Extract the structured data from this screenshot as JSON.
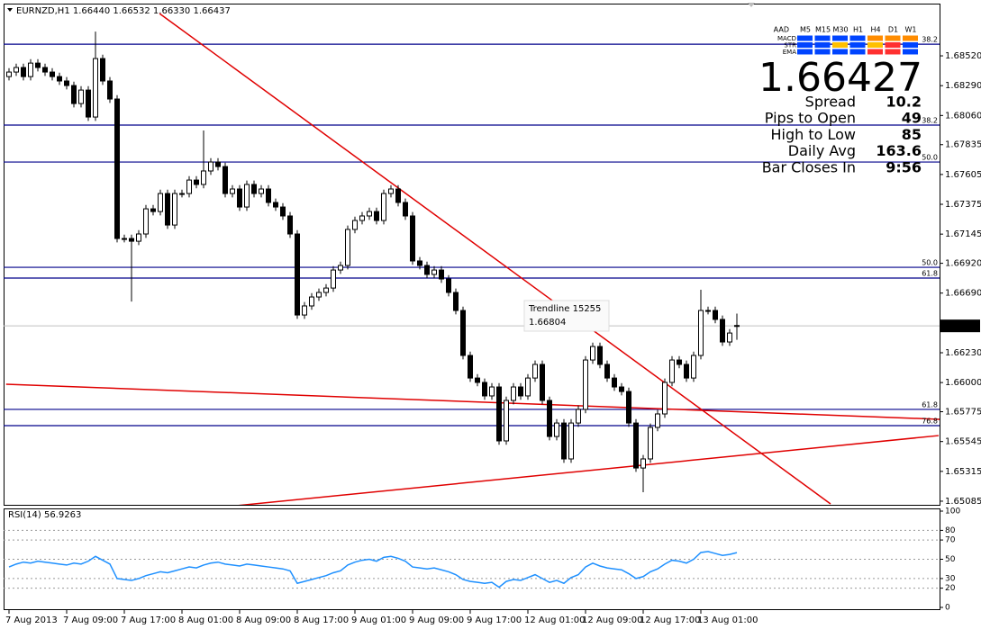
{
  "chart_data": {
    "type": "candlestick",
    "title": "EURNZD,H1  1.66440 1.66532 1.66330 1.66437",
    "ylim": [
      1.65057,
      1.68916
    ],
    "yticks": [
      {
        "value": 1.6852,
        "label": "1.68520"
      },
      {
        "value": 1.6829,
        "label": "1.68290"
      },
      {
        "value": 1.6806,
        "label": "1.68060"
      },
      {
        "value": 1.67835,
        "label": "1.67835"
      },
      {
        "value": 1.67605,
        "label": "1.67605"
      },
      {
        "value": 1.67375,
        "label": "1.67375"
      },
      {
        "value": 1.67145,
        "label": "1.67145"
      },
      {
        "value": 1.6692,
        "label": "1.66920"
      },
      {
        "value": 1.6669,
        "label": "1.66690"
      },
      {
        "value": 1.6623,
        "label": "1.66230"
      },
      {
        "value": 1.66,
        "label": "1.66000"
      },
      {
        "value": 1.65775,
        "label": "1.65775"
      },
      {
        "value": 1.65545,
        "label": "1.65545"
      },
      {
        "value": 1.65315,
        "label": "1.65315"
      },
      {
        "value": 1.65085,
        "label": "1.65085"
      }
    ],
    "xticks": [
      {
        "value": 0,
        "label": "7 Aug 2013"
      },
      {
        "value": 8,
        "label": "7 Aug 09:00"
      },
      {
        "value": 16,
        "label": "7 Aug 17:00"
      },
      {
        "value": 24,
        "label": "8 Aug 01:00"
      },
      {
        "value": 32,
        "label": "8 Aug 09:00"
      },
      {
        "value": 40,
        "label": "8 Aug 17:00"
      },
      {
        "value": 48,
        "label": "9 Aug 01:00"
      },
      {
        "value": 56,
        "label": "9 Aug 09:00"
      },
      {
        "value": 64,
        "label": "9 Aug 17:00"
      },
      {
        "value": 72,
        "label": "12 Aug 01:00"
      },
      {
        "value": 80,
        "label": "12 Aug 09:00"
      },
      {
        "value": 88,
        "label": "12 Aug 17:00"
      },
      {
        "value": 96,
        "label": "13 Aug 01:00"
      }
    ],
    "candles": [
      [
        1.6836,
        1.68425,
        1.6833,
        1.68395
      ],
      [
        1.68395,
        1.6846,
        1.68365,
        1.6843
      ],
      [
        1.6843,
        1.6846,
        1.6833,
        1.6836
      ],
      [
        1.6836,
        1.68494,
        1.6833,
        1.68464
      ],
      [
        1.68464,
        1.68494,
        1.684,
        1.6843
      ],
      [
        1.6843,
        1.6846,
        1.68365,
        1.68395
      ],
      [
        1.68395,
        1.68425,
        1.6833,
        1.6836
      ],
      [
        1.6836,
        1.6839,
        1.68296,
        1.68326
      ],
      [
        1.68326,
        1.68356,
        1.68261,
        1.68291
      ],
      [
        1.68291,
        1.68321,
        1.68122,
        1.68152
      ],
      [
        1.68152,
        1.68286,
        1.68122,
        1.68256
      ],
      [
        1.68256,
        1.68286,
        1.68018,
        1.68048
      ],
      [
        1.68048,
        1.68707,
        1.68018,
        1.68499
      ],
      [
        1.68499,
        1.68529,
        1.68296,
        1.68326
      ],
      [
        1.68326,
        1.68356,
        1.68157,
        1.68187
      ],
      [
        1.68187,
        1.68217,
        1.67081,
        1.67111
      ],
      [
        1.67111,
        1.67141,
        1.67081,
        1.67111
      ],
      [
        1.67111,
        1.67141,
        1.66625,
        1.6709
      ],
      [
        1.6709,
        1.67176,
        1.6706,
        1.67146
      ],
      [
        1.67146,
        1.6737,
        1.67116,
        1.6734
      ],
      [
        1.6734,
        1.6737,
        1.67289,
        1.67319
      ],
      [
        1.67319,
        1.67488,
        1.67289,
        1.67458
      ],
      [
        1.67458,
        1.67488,
        1.67185,
        1.67215
      ],
      [
        1.67215,
        1.67488,
        1.67185,
        1.67458
      ],
      [
        1.67458,
        1.67488,
        1.67428,
        1.67458
      ],
      [
        1.67458,
        1.67592,
        1.67428,
        1.67562
      ],
      [
        1.67562,
        1.67592,
        1.67498,
        1.67528
      ],
      [
        1.67528,
        1.67944,
        1.67498,
        1.67632
      ],
      [
        1.67632,
        1.67731,
        1.67602,
        1.67701
      ],
      [
        1.67701,
        1.67731,
        1.67636,
        1.67666
      ],
      [
        1.67666,
        1.67696,
        1.67428,
        1.67458
      ],
      [
        1.67458,
        1.67523,
        1.67428,
        1.67493
      ],
      [
        1.67493,
        1.67523,
        1.67324,
        1.67354
      ],
      [
        1.67354,
        1.67558,
        1.67324,
        1.67528
      ],
      [
        1.67528,
        1.67558,
        1.67428,
        1.67458
      ],
      [
        1.67458,
        1.67523,
        1.67428,
        1.67493
      ],
      [
        1.67493,
        1.67523,
        1.67359,
        1.67389
      ],
      [
        1.67389,
        1.67419,
        1.67324,
        1.67354
      ],
      [
        1.67354,
        1.67384,
        1.67255,
        1.67285
      ],
      [
        1.67285,
        1.67315,
        1.67116,
        1.67146
      ],
      [
        1.67146,
        1.67176,
        1.66491,
        1.66521
      ],
      [
        1.66521,
        1.66621,
        1.66491,
        1.66591
      ],
      [
        1.66591,
        1.6669,
        1.66561,
        1.6666
      ],
      [
        1.6666,
        1.66725,
        1.6663,
        1.66695
      ],
      [
        1.66695,
        1.66759,
        1.66665,
        1.66729
      ],
      [
        1.66729,
        1.66898,
        1.66699,
        1.66868
      ],
      [
        1.66868,
        1.66933,
        1.66838,
        1.66903
      ],
      [
        1.66903,
        1.67211,
        1.66873,
        1.67181
      ],
      [
        1.67181,
        1.6728,
        1.67151,
        1.6725
      ],
      [
        1.6725,
        1.67315,
        1.6722,
        1.67285
      ],
      [
        1.67285,
        1.67349,
        1.67255,
        1.67319
      ],
      [
        1.67319,
        1.67349,
        1.6722,
        1.6725
      ],
      [
        1.6725,
        1.67488,
        1.6722,
        1.67458
      ],
      [
        1.67458,
        1.67523,
        1.67428,
        1.67493
      ],
      [
        1.67493,
        1.67523,
        1.67359,
        1.67389
      ],
      [
        1.67389,
        1.67419,
        1.67255,
        1.67285
      ],
      [
        1.67285,
        1.67315,
        1.66908,
        1.66938
      ],
      [
        1.66938,
        1.66968,
        1.66873,
        1.66903
      ],
      [
        1.66903,
        1.66933,
        1.66804,
        1.66834
      ],
      [
        1.66834,
        1.66898,
        1.66804,
        1.66868
      ],
      [
        1.66868,
        1.66898,
        1.66769,
        1.66799
      ],
      [
        1.66799,
        1.66829,
        1.66665,
        1.66695
      ],
      [
        1.66695,
        1.66725,
        1.66526,
        1.66556
      ],
      [
        1.66556,
        1.66586,
        1.66179,
        1.66209
      ],
      [
        1.66209,
        1.66239,
        1.66005,
        1.66035
      ],
      [
        1.66035,
        1.66065,
        1.65971,
        1.66001
      ],
      [
        1.66001,
        1.66031,
        1.65867,
        1.65897
      ],
      [
        1.65897,
        1.65996,
        1.65867,
        1.65966
      ],
      [
        1.65966,
        1.65996,
        1.6552,
        1.6555
      ],
      [
        1.6555,
        1.65892,
        1.6552,
        1.65862
      ],
      [
        1.65862,
        1.65996,
        1.65832,
        1.65966
      ],
      [
        1.65966,
        1.65996,
        1.65867,
        1.65897
      ],
      [
        1.65897,
        1.66065,
        1.65867,
        1.66035
      ],
      [
        1.66035,
        1.6617,
        1.66005,
        1.6614
      ],
      [
        1.6614,
        1.6617,
        1.65832,
        1.65862
      ],
      [
        1.65862,
        1.65892,
        1.65554,
        1.65584
      ],
      [
        1.65584,
        1.65718,
        1.65554,
        1.65688
      ],
      [
        1.65688,
        1.65718,
        1.65381,
        1.65411
      ],
      [
        1.65411,
        1.65718,
        1.65381,
        1.65688
      ],
      [
        1.65688,
        1.65823,
        1.65658,
        1.65793
      ],
      [
        1.65793,
        1.66204,
        1.65763,
        1.66174
      ],
      [
        1.66174,
        1.66308,
        1.66144,
        1.66278
      ],
      [
        1.66278,
        1.66308,
        1.6611,
        1.6614
      ],
      [
        1.6614,
        1.6617,
        1.66005,
        1.66035
      ],
      [
        1.66035,
        1.66065,
        1.65936,
        1.65966
      ],
      [
        1.65966,
        1.65996,
        1.65901,
        1.65931
      ],
      [
        1.65931,
        1.65961,
        1.65658,
        1.65688
      ],
      [
        1.65688,
        1.65718,
        1.65311,
        1.65341
      ],
      [
        1.65341,
        1.65441,
        1.65154,
        1.65411
      ],
      [
        1.65411,
        1.65684,
        1.65381,
        1.65654
      ],
      [
        1.65654,
        1.65788,
        1.65624,
        1.65758
      ],
      [
        1.65758,
        1.66031,
        1.65728,
        1.66001
      ],
      [
        1.66001,
        1.66204,
        1.65971,
        1.66174
      ],
      [
        1.66174,
        1.66204,
        1.6611,
        1.6614
      ],
      [
        1.6614,
        1.6617,
        1.66005,
        1.66035
      ],
      [
        1.66035,
        1.66239,
        1.66005,
        1.66209
      ],
      [
        1.66209,
        1.66716,
        1.66179,
        1.66556
      ],
      [
        1.66556,
        1.66586,
        1.66526,
        1.66556
      ],
      [
        1.66556,
        1.66586,
        1.66457,
        1.66487
      ],
      [
        1.66487,
        1.66517,
        1.66283,
        1.66313
      ],
      [
        1.66313,
        1.66412,
        1.66283,
        1.66382
      ],
      [
        1.6644,
        1.66532,
        1.6633,
        1.66437
      ]
    ],
    "levels": [
      {
        "price": 1.6861,
        "label": "38.2"
      },
      {
        "price": 1.67986,
        "label": "38.2"
      },
      {
        "price": 1.67701,
        "label": "50.0"
      },
      {
        "price": 1.66889,
        "label": "50.0"
      },
      {
        "price": 1.66806,
        "label": "61.8"
      },
      {
        "price": 1.65793,
        "label": "61.8"
      },
      {
        "price": 1.65668,
        "label": "76.8"
      }
    ],
    "level_color": "#00008b",
    "trendlines": [
      {
        "x": [
          20.9,
          114
        ],
        "y": [
          1.68846,
          1.65064
        ]
      },
      {
        "x": [
          -0.4,
          129.5
        ],
        "y": [
          1.65987,
          1.65716
        ]
      },
      {
        "x": [
          31.5,
          129
        ],
        "y": [
          1.6505,
          1.65591
        ]
      }
    ],
    "trendline_color": "#e00000",
    "tooltip": {
      "name": "Trendline 15255",
      "value": "1.66804"
    },
    "panel": {
      "header": "AAD",
      "timeframes": [
        "M5",
        "M15",
        "M30",
        "H1",
        "H4",
        "D1",
        "W1"
      ],
      "rows": [
        "MACD",
        "STR",
        "EMA"
      ],
      "price": "1.66427",
      "stats": [
        {
          "label": "Spread",
          "value": "10.2",
          "color": "#e6c200"
        },
        {
          "label": "Pips to Open",
          "value": "49",
          "color": "#0000ff"
        },
        {
          "label": "High to Low",
          "value": "85",
          "color": "#e6c200"
        },
        {
          "label": "Daily Avg",
          "value": "163.6",
          "color": "#0000cd"
        },
        {
          "label": "Bar Closes In",
          "value": "9:56",
          "color": "#e6c200"
        }
      ]
    },
    "rsi": {
      "label": "RSI(14) 56.9263",
      "color": "#1e90ff",
      "ylim": [
        0,
        100
      ],
      "yticks": [
        0,
        20,
        30,
        50,
        70,
        80,
        100
      ],
      "values": [
        42,
        45,
        47,
        46,
        48,
        47,
        46,
        45,
        44,
        46,
        45,
        48,
        53,
        49,
        45,
        30,
        29,
        28,
        30,
        33,
        35,
        37,
        36,
        38,
        40,
        42,
        41,
        44,
        46,
        47,
        45,
        44,
        43,
        45,
        44,
        43,
        42,
        41,
        40,
        38,
        25,
        27,
        29,
        31,
        33,
        36,
        38,
        44,
        47,
        49,
        50,
        48,
        52,
        53,
        51,
        48,
        42,
        41,
        40,
        41,
        39,
        37,
        34,
        29,
        27,
        26,
        25,
        26,
        21,
        27,
        29,
        28,
        31,
        34,
        30,
        26,
        28,
        25,
        31,
        34,
        42,
        46,
        43,
        41,
        40,
        39,
        35,
        30,
        32,
        37,
        40,
        45,
        49,
        48,
        46,
        50,
        57,
        58,
        56,
        54,
        55,
        56.9263
      ]
    }
  }
}
